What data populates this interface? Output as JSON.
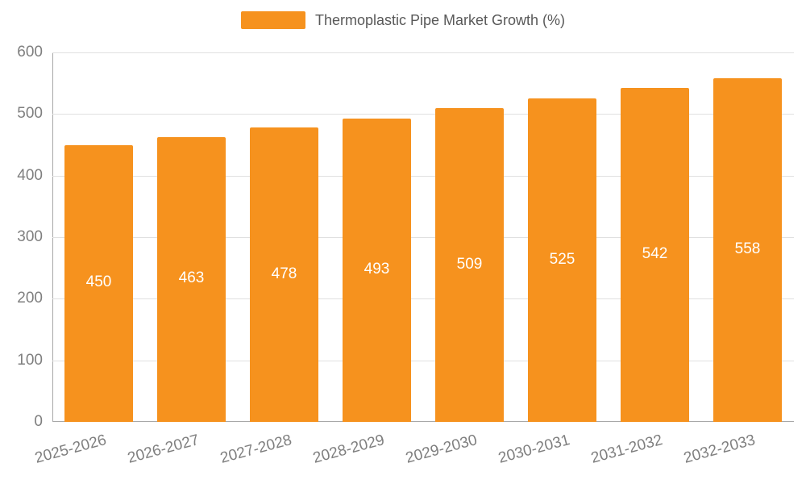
{
  "legend": {
    "label": "Thermoplastic Pipe Market Growth (%)",
    "color": "#F6921E"
  },
  "chart_data": {
    "type": "bar",
    "title": "Thermoplastic Pipe Market Growth (%)",
    "categories": [
      "2025-2026",
      "2026-2027",
      "2027-2028",
      "2028-2029",
      "2029-2030",
      "2030-2031",
      "2031-2032",
      "2032-2033"
    ],
    "values": [
      450,
      463,
      478,
      493,
      509,
      525,
      542,
      558
    ],
    "xlabel": "",
    "ylabel": "",
    "ylim": [
      0,
      600
    ],
    "yticks": [
      0,
      100,
      200,
      300,
      400,
      500,
      600
    ],
    "grid": true,
    "legend_position": "top",
    "bar_color": "#F6921E",
    "value_label_color": "#ffffff",
    "value_labels_shown": true
  }
}
